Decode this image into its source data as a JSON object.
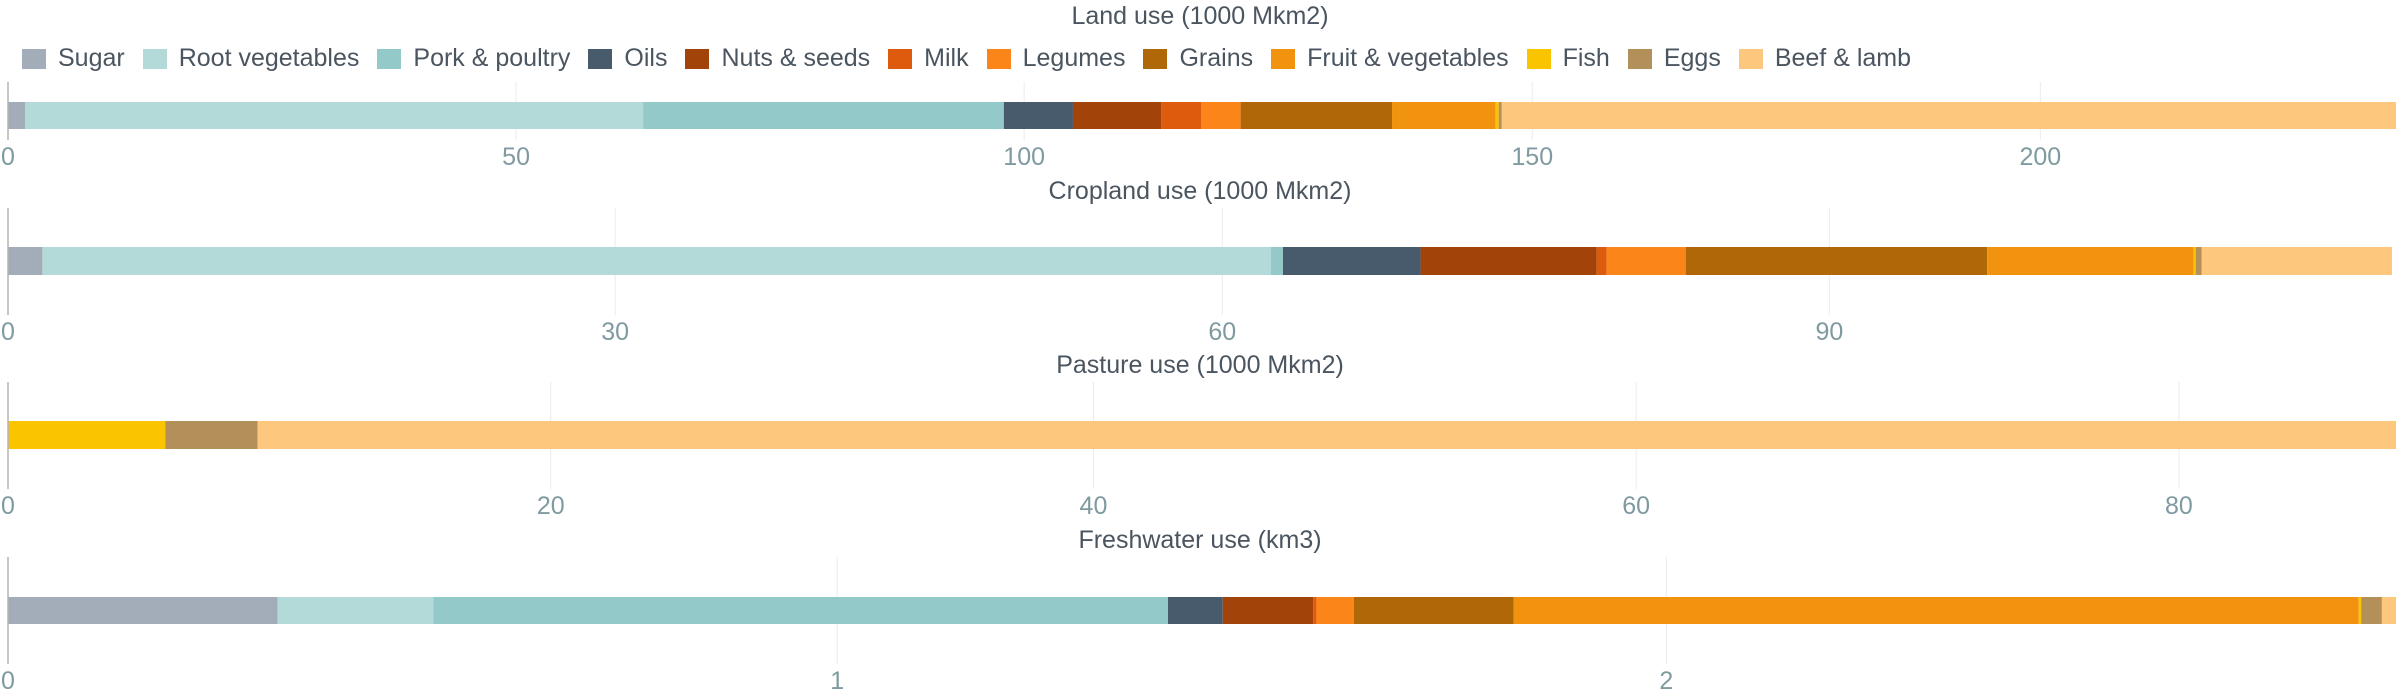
{
  "legend": [
    {
      "name": "Sugar",
      "color": "#a2adb9"
    },
    {
      "name": "Root vegetables",
      "color": "#b4d9d9"
    },
    {
      "name": "Pork & poultry",
      "color": "#93c9c9"
    },
    {
      "name": "Oils",
      "color": "#475b6d"
    },
    {
      "name": "Nuts & seeds",
      "color": "#a2430a"
    },
    {
      "name": "Milk",
      "color": "#de5b0d"
    },
    {
      "name": "Legumes",
      "color": "#fb8518"
    },
    {
      "name": "Grains",
      "color": "#b06708"
    },
    {
      "name": "Fruit & vegetables",
      "color": "#f29310"
    },
    {
      "name": "Fish",
      "color": "#fbc400"
    },
    {
      "name": "Eggs",
      "color": "#b38f5a"
    },
    {
      "name": "Beef & lamb",
      "color": "#fdc87e"
    }
  ],
  "chart_data": [
    {
      "type": "bar",
      "orientation": "horizontal-stacked",
      "title": "Land use (1000 Mkm2)",
      "xlim": [
        0,
        235
      ],
      "ticks": [
        "0",
        "50",
        "100",
        "150",
        "200"
      ],
      "tick_values": [
        0,
        50,
        100,
        150,
        200
      ],
      "series": [
        {
          "name": "Sugar",
          "color": "#a2adb9",
          "value": 1.7
        },
        {
          "name": "Root vegetables",
          "color": "#b4d9d9",
          "value": 60.8
        },
        {
          "name": "Pork & poultry",
          "color": "#93c9c9",
          "value": 35.5
        },
        {
          "name": "Oils",
          "color": "#475b6d",
          "value": 6.8
        },
        {
          "name": "Nuts & seeds",
          "color": "#a2430a",
          "value": 8.7
        },
        {
          "name": "Milk",
          "color": "#de5b0d",
          "value": 3.9
        },
        {
          "name": "Legumes",
          "color": "#fb8518",
          "value": 3.9
        },
        {
          "name": "Grains",
          "color": "#b06708",
          "value": 14.9
        },
        {
          "name": "Fruit & vegetables",
          "color": "#f29310",
          "value": 10.2
        },
        {
          "name": "Fish",
          "color": "#fbc400",
          "value": 0.3
        },
        {
          "name": "Eggs",
          "color": "#b38f5a",
          "value": 0.3
        },
        {
          "name": "Beef & lamb",
          "color": "#fdc87e",
          "value": 88.0
        }
      ]
    },
    {
      "type": "bar",
      "orientation": "horizontal-stacked",
      "title": "Cropland use (1000 Mkm2)",
      "xlim": [
        0,
        118
      ],
      "ticks": [
        "0",
        "30",
        "60",
        "90"
      ],
      "tick_values": [
        0,
        30,
        60,
        90
      ],
      "series": [
        {
          "name": "Sugar",
          "color": "#a2adb9",
          "value": 1.7
        },
        {
          "name": "Root vegetables",
          "color": "#b4d9d9",
          "value": 60.7
        },
        {
          "name": "Pork & poultry",
          "color": "#93c9c9",
          "value": 0.6
        },
        {
          "name": "Oils",
          "color": "#475b6d",
          "value": 6.8
        },
        {
          "name": "Nuts & seeds",
          "color": "#a2430a",
          "value": 8.7
        },
        {
          "name": "Milk",
          "color": "#de5b0d",
          "value": 0.5
        },
        {
          "name": "Legumes",
          "color": "#fb8518",
          "value": 3.9
        },
        {
          "name": "Grains",
          "color": "#b06708",
          "value": 14.9
        },
        {
          "name": "Fruit & vegetables",
          "color": "#f29310",
          "value": 10.2
        },
        {
          "name": "Fish",
          "color": "#fbc400",
          "value": 0.1
        },
        {
          "name": "Eggs",
          "color": "#b38f5a",
          "value": 0.3
        },
        {
          "name": "Beef & lamb",
          "color": "#fdc87e",
          "value": 9.4
        }
      ]
    },
    {
      "type": "bar",
      "orientation": "horizontal-stacked",
      "title": "Pasture use (1000 Mkm2)",
      "xlim": [
        0,
        88
      ],
      "ticks": [
        "0",
        "20",
        "40",
        "60",
        "80"
      ],
      "tick_values": [
        0,
        20,
        40,
        60,
        80
      ],
      "series": [
        {
          "name": "Fish",
          "color": "#fbc400",
          "value": 5.8
        },
        {
          "name": "Eggs",
          "color": "#b38f5a",
          "value": 3.4
        },
        {
          "name": "Beef & lamb",
          "color": "#fdc87e",
          "value": 78.8
        }
      ]
    },
    {
      "type": "bar",
      "orientation": "horizontal-stacked",
      "title": "Freshwater use (km3)",
      "xlim": [
        0,
        2.88
      ],
      "ticks": [
        "0",
        "1",
        "2"
      ],
      "tick_values": [
        0,
        1,
        2
      ],
      "series": [
        {
          "name": "Sugar",
          "color": "#a2adb9",
          "value": 0.325
        },
        {
          "name": "Root vegetables",
          "color": "#b4d9d9",
          "value": 0.188
        },
        {
          "name": "Pork & poultry",
          "color": "#93c9c9",
          "value": 0.886
        },
        {
          "name": "Oils",
          "color": "#475b6d",
          "value": 0.066
        },
        {
          "name": "Nuts & seeds",
          "color": "#a2430a",
          "value": 0.109
        },
        {
          "name": "Milk",
          "color": "#de5b0d",
          "value": 0.004
        },
        {
          "name": "Legumes",
          "color": "#fb8518",
          "value": 0.045
        },
        {
          "name": "Grains",
          "color": "#b06708",
          "value": 0.193
        },
        {
          "name": "Fruit & vegetables",
          "color": "#f29310",
          "value": 1.019
        },
        {
          "name": "Fish",
          "color": "#fbc400",
          "value": 0.003
        },
        {
          "name": "Eggs",
          "color": "#b38f5a",
          "value": 0.025
        },
        {
          "name": "Beef & lamb",
          "color": "#fdc87e",
          "value": 0.017
        }
      ]
    }
  ]
}
